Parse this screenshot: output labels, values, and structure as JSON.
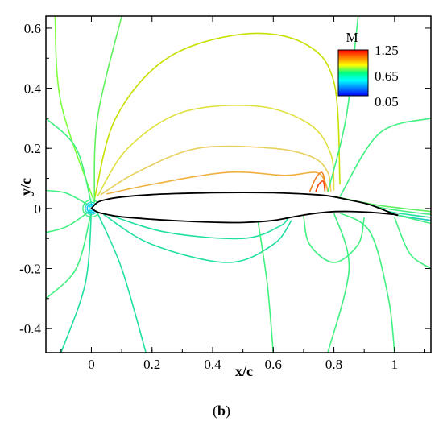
{
  "chart_data": {
    "type": "contour",
    "xlabel": "x/c",
    "ylabel": "y/c",
    "xlim": [
      -0.15,
      1.12
    ],
    "ylim": [
      -0.48,
      0.64
    ],
    "x_ticks": [
      "0",
      "0.2",
      "0.4",
      "0.6",
      "0.8",
      "1"
    ],
    "x_tick_values": [
      0,
      0.2,
      0.4,
      0.6,
      0.8,
      1.0
    ],
    "y_ticks": [
      "-0.4",
      "-0.2",
      "0",
      "0.2",
      "0.4",
      "0.6"
    ],
    "y_tick_values": [
      -0.4,
      -0.2,
      0,
      0.2,
      0.4,
      0.6
    ],
    "legend": {
      "title": "M",
      "labels": [
        "1.25",
        "0.65",
        "0.05"
      ],
      "values": [
        1.25,
        0.65,
        0.05
      ],
      "colormap": [
        "#ff0000",
        "#ff8000",
        "#ffff00",
        "#00ff80",
        "#00ffff",
        "#0080ff",
        "#0000ff"
      ],
      "placement": "top-right"
    },
    "airfoil": {
      "upper": [
        [
          0,
          0
        ],
        [
          0.02,
          0.02
        ],
        [
          0.05,
          0.03
        ],
        [
          0.1,
          0.038
        ],
        [
          0.2,
          0.046
        ],
        [
          0.3,
          0.05
        ],
        [
          0.4,
          0.052
        ],
        [
          0.5,
          0.053
        ],
        [
          0.6,
          0.052
        ],
        [
          0.7,
          0.048
        ],
        [
          0.78,
          0.042
        ],
        [
          0.85,
          0.028
        ],
        [
          0.92,
          0.012
        ],
        [
          1.0,
          -0.02
        ]
      ],
      "lower": [
        [
          0,
          0
        ],
        [
          0.02,
          -0.012
        ],
        [
          0.05,
          -0.02
        ],
        [
          0.1,
          -0.028
        ],
        [
          0.2,
          -0.036
        ],
        [
          0.3,
          -0.042
        ],
        [
          0.4,
          -0.046
        ],
        [
          0.5,
          -0.047
        ],
        [
          0.6,
          -0.04
        ],
        [
          0.7,
          -0.022
        ],
        [
          0.78,
          -0.012
        ],
        [
          0.85,
          -0.01
        ],
        [
          0.92,
          -0.013
        ],
        [
          1.0,
          -0.02
        ]
      ]
    },
    "contours": [
      {
        "color": "#c8e000",
        "points": [
          [
            0.01,
            0.03
          ],
          [
            0.08,
            0.3
          ],
          [
            0.25,
            0.5
          ],
          [
            0.5,
            0.58
          ],
          [
            0.7,
            0.55
          ],
          [
            0.8,
            0.42
          ],
          [
            0.82,
            0.08
          ]
        ]
      },
      {
        "color": "#e0e040",
        "points": [
          [
            0.02,
            0.04
          ],
          [
            0.12,
            0.2
          ],
          [
            0.3,
            0.32
          ],
          [
            0.55,
            0.34
          ],
          [
            0.72,
            0.28
          ],
          [
            0.79,
            0.18
          ],
          [
            0.8,
            0.06
          ]
        ]
      },
      {
        "color": "#e8d060",
        "points": [
          [
            0.03,
            0.045
          ],
          [
            0.15,
            0.12
          ],
          [
            0.35,
            0.2
          ],
          [
            0.6,
            0.2
          ],
          [
            0.73,
            0.17
          ],
          [
            0.78,
            0.12
          ],
          [
            0.79,
            0.055
          ]
        ]
      },
      {
        "color": "#f0b040",
        "points": [
          [
            0.05,
            0.048
          ],
          [
            0.2,
            0.08
          ],
          [
            0.45,
            0.12
          ],
          [
            0.64,
            0.11
          ],
          [
            0.74,
            0.12
          ],
          [
            0.77,
            0.09
          ],
          [
            0.78,
            0.055
          ]
        ]
      },
      {
        "color": "#f08020",
        "points": [
          [
            0.72,
            0.055
          ],
          [
            0.74,
            0.1
          ],
          [
            0.76,
            0.12
          ],
          [
            0.77,
            0.09
          ],
          [
            0.77,
            0.055
          ]
        ]
      },
      {
        "color": "#ff4000",
        "points": [
          [
            0.74,
            0.055
          ],
          [
            0.75,
            0.08
          ],
          [
            0.765,
            0.09
          ],
          [
            0.77,
            0.06
          ]
        ]
      },
      {
        "color": "#80ff40",
        "points": [
          [
            0.01,
            0.02
          ],
          [
            -0.1,
            0.35
          ],
          [
            -0.12,
            0.64
          ]
        ]
      },
      {
        "color": "#60f060",
        "points": [
          [
            0.01,
            0.02
          ],
          [
            0.02,
            0.3
          ],
          [
            0.1,
            0.64
          ]
        ]
      },
      {
        "color": "#40f080",
        "points": [
          [
            0.0,
            0.015
          ],
          [
            -0.05,
            0.2
          ],
          [
            -0.15,
            0.3
          ]
        ]
      },
      {
        "color": "#40f080",
        "points": [
          [
            0.0,
            0.005
          ],
          [
            -0.08,
            0.05
          ],
          [
            -0.15,
            0.06
          ]
        ]
      },
      {
        "color": "#40f080",
        "points": [
          [
            0.0,
            -0.005
          ],
          [
            -0.08,
            -0.06
          ],
          [
            -0.15,
            -0.08
          ]
        ]
      },
      {
        "color": "#40f080",
        "points": [
          [
            0.0,
            -0.01
          ],
          [
            -0.05,
            -0.2
          ],
          [
            -0.15,
            -0.3
          ]
        ]
      },
      {
        "color": "#20e0a0",
        "points": [
          [
            0.0,
            -0.01
          ],
          [
            -0.02,
            -0.25
          ],
          [
            -0.1,
            -0.48
          ]
        ]
      },
      {
        "color": "#20e0a0",
        "points": [
          [
            0.02,
            -0.015
          ],
          [
            0.1,
            -0.2
          ],
          [
            0.18,
            -0.48
          ]
        ]
      },
      {
        "color": "#20e0a0",
        "points": [
          [
            0.04,
            -0.02
          ],
          [
            0.2,
            -0.12
          ],
          [
            0.45,
            -0.18
          ],
          [
            0.6,
            -0.12
          ],
          [
            0.66,
            -0.04
          ]
        ]
      },
      {
        "color": "#20e0a0",
        "points": [
          [
            0.06,
            -0.022
          ],
          [
            0.25,
            -0.08
          ],
          [
            0.5,
            -0.1
          ],
          [
            0.62,
            -0.06
          ],
          [
            0.65,
            -0.03
          ]
        ]
      },
      {
        "color": "#40f080",
        "points": [
          [
            0.55,
            -0.045
          ],
          [
            0.58,
            -0.25
          ],
          [
            0.6,
            -0.48
          ]
        ]
      },
      {
        "color": "#40f080",
        "points": [
          [
            0.78,
            0.055
          ],
          [
            0.84,
            0.3
          ],
          [
            0.88,
            0.64
          ]
        ]
      },
      {
        "color": "#40f080",
        "points": [
          [
            0.82,
            0.04
          ],
          [
            0.95,
            0.25
          ],
          [
            1.12,
            0.3
          ]
        ]
      },
      {
        "color": "#40f080",
        "points": [
          [
            0.8,
            -0.015
          ],
          [
            0.85,
            -0.2
          ],
          [
            0.78,
            -0.48
          ]
        ]
      },
      {
        "color": "#40f080",
        "points": [
          [
            0.82,
            -0.015
          ],
          [
            0.92,
            -0.08
          ],
          [
            0.98,
            -0.3
          ],
          [
            1.0,
            -0.48
          ]
        ]
      },
      {
        "color": "#40f080",
        "points": [
          [
            0.7,
            -0.025
          ],
          [
            0.72,
            -0.12
          ],
          [
            0.8,
            -0.18
          ],
          [
            0.88,
            -0.12
          ],
          [
            0.9,
            -0.03
          ]
        ]
      },
      {
        "color": "#60f060",
        "points": [
          [
            0.8,
            0.04
          ],
          [
            0.95,
            0.01
          ],
          [
            1.12,
            -0.01
          ]
        ]
      },
      {
        "color": "#40f080",
        "points": [
          [
            0.82,
            0.035
          ],
          [
            0.97,
            0.0
          ],
          [
            1.12,
            -0.02
          ]
        ]
      },
      {
        "color": "#20e0a0",
        "points": [
          [
            0.84,
            0.03
          ],
          [
            0.98,
            -0.01
          ],
          [
            1.12,
            -0.03
          ]
        ]
      },
      {
        "color": "#20c8c0",
        "points": [
          [
            0.85,
            0.025
          ],
          [
            1.0,
            -0.02
          ],
          [
            1.12,
            -0.04
          ]
        ]
      },
      {
        "color": "#40f080",
        "points": [
          [
            1.0,
            -0.02
          ],
          [
            1.12,
            -0.05
          ]
        ]
      },
      {
        "color": "#40f080",
        "points": [
          [
            1.0,
            -0.03
          ],
          [
            1.05,
            -0.15
          ],
          [
            1.12,
            -0.2
          ]
        ]
      }
    ],
    "stagnation_rings": [
      {
        "color": "#00e0ff",
        "r": 0.008
      },
      {
        "color": "#00c0ff",
        "r": 0.014
      },
      {
        "color": "#20e0c0",
        "r": 0.02
      },
      {
        "color": "#40f080",
        "r": 0.028
      }
    ]
  },
  "caption": "(b)"
}
